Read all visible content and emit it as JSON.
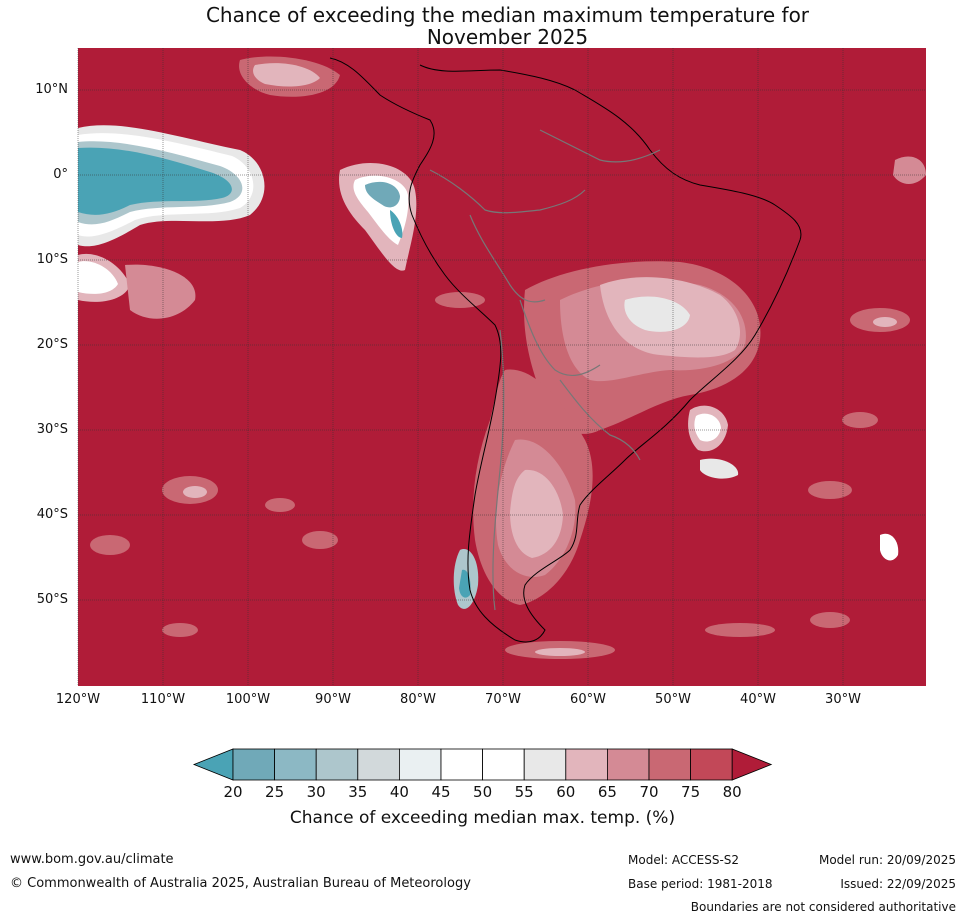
{
  "title": {
    "line1": "Chance of exceeding the median maximum temperature for",
    "line2": "November 2025"
  },
  "map": {
    "region": "South America and surrounding oceans",
    "lat_labels": [
      "10°N",
      "0°",
      "10°S",
      "20°S",
      "30°S",
      "40°S",
      "50°S"
    ],
    "lon_labels": [
      "120°W",
      "110°W",
      "100°W",
      "90°W",
      "80°W",
      "70°W",
      "60°W",
      "50°W",
      "40°W",
      "30°W"
    ],
    "background_color": "#b01c38"
  },
  "colorbar": {
    "ticks": [
      "20",
      "25",
      "30",
      "35",
      "40",
      "45",
      "50",
      "55",
      "60",
      "65",
      "70",
      "75",
      "80"
    ],
    "colors": [
      "#4aa3b5",
      "#70a9b8",
      "#8cb8c4",
      "#adc6cc",
      "#d2d9db",
      "#eaf0f2",
      "#ffffff",
      "#ffffff",
      "#e8e8e8",
      "#e2b5bc",
      "#d48a95",
      "#c96873",
      "#c24858",
      "#b01c38"
    ],
    "label": "Chance of exceeding median max. temp. (%)"
  },
  "footer": {
    "website": "www.bom.gov.au/climate",
    "copyright": "© Commonwealth of Australia 2025, Australian Bureau of Meteorology",
    "model": "Model: ACCESS-S2",
    "base_period": "Base period: 1981-2018",
    "model_run": "Model run: 20/09/2025",
    "issued": "Issued: 22/09/2025",
    "disclaimer": "Boundaries are not considered authoritative"
  }
}
